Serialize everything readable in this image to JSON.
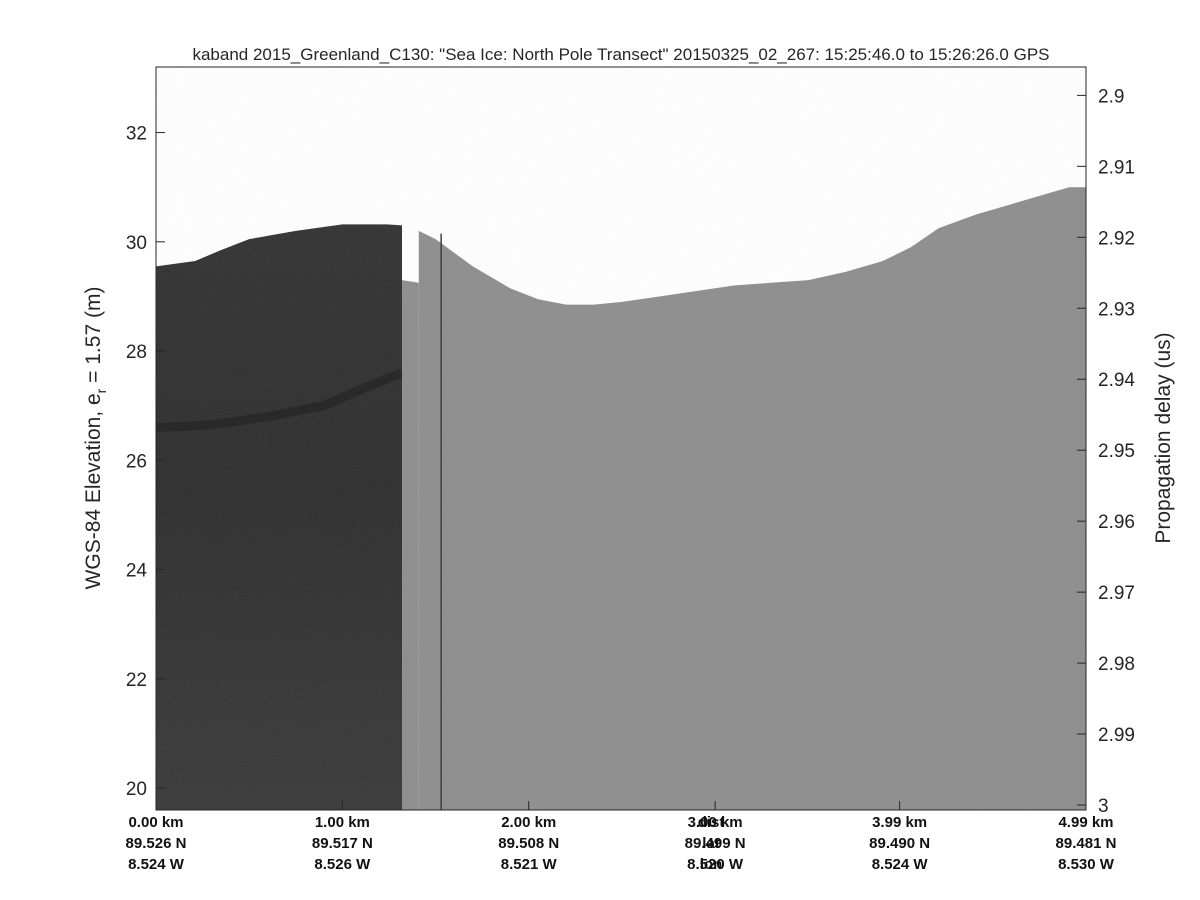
{
  "chart_data": {
    "type": "heatmap",
    "title": "kaband 2015_Greenland_C130: \"Sea Ice: North Pole Transect\"  20150325_02_267: 15:25:46.0 to 15:26:26.0 GPS",
    "ylabel_left_main": "WGS-84 Elevation, e",
    "ylabel_left_sub": "r",
    "ylabel_left_tail": " = 1.57 (m)",
    "ylabel_right": "Propagation delay (us)",
    "ylim_left": [
      19.6,
      33.2
    ],
    "yticks_left": [
      "20",
      "22",
      "24",
      "26",
      "28",
      "30",
      "32"
    ],
    "ylim_right": [
      2.896,
      3.0007
    ],
    "yticks_right": [
      "2.9",
      "2.91",
      "2.92",
      "2.93",
      "2.94",
      "2.95",
      "2.96",
      "2.97",
      "2.98",
      "2.99",
      "3"
    ],
    "xlim_km": [
      0,
      4.99
    ],
    "x_rows": [
      {
        "row_label": "dist",
        "cells": [
          {
            "text": "0.00 km",
            "km": 0.0
          },
          {
            "text": "1.00 km",
            "km": 1.0
          },
          {
            "text": "2.00 km",
            "km": 2.0
          },
          {
            "text": "3.00 km",
            "km": 3.0
          },
          {
            "text": "3.99 km",
            "km": 3.99
          },
          {
            "text": "4.99 km",
            "km": 4.99
          }
        ]
      },
      {
        "row_label": "lat",
        "cells": [
          {
            "text": "89.526 N",
            "km": 0.0
          },
          {
            "text": "89.517 N",
            "km": 1.0
          },
          {
            "text": "89.508 N",
            "km": 2.0
          },
          {
            "text": "89.499 N",
            "km": 3.0
          },
          {
            "text": "89.490 N",
            "km": 3.99
          },
          {
            "text": "89.481 N",
            "km": 4.99
          }
        ]
      },
      {
        "row_label": "lon",
        "cells": [
          {
            "text": "8.524 W",
            "km": 0.0
          },
          {
            "text": "8.526 W",
            "km": 1.0
          },
          {
            "text": "8.521 W",
            "km": 2.0
          },
          {
            "text": "8.520 W",
            "km": 3.0
          },
          {
            "text": "8.524 W",
            "km": 3.99
          },
          {
            "text": "8.530 W",
            "km": 4.99
          }
        ]
      }
    ],
    "row_label_km": 2.49,
    "surface_elevation": {
      "x_km": [
        0.0,
        0.21,
        0.35,
        0.5,
        0.75,
        1.0,
        1.24,
        1.32
      ],
      "y_m": [
        29.55,
        29.65,
        29.85,
        30.05,
        30.2,
        30.32,
        30.32,
        30.3
      ]
    },
    "surface_elevation_2": {
      "x_km": [
        1.41,
        1.5,
        1.58,
        1.7,
        1.9,
        2.05,
        2.2,
        2.35,
        2.5,
        2.7,
        2.9,
        3.1,
        3.3,
        3.5,
        3.7,
        3.9,
        4.05,
        4.2,
        4.4,
        4.6,
        4.8,
        4.9,
        4.99
      ],
      "y_m": [
        30.2,
        30.05,
        29.85,
        29.55,
        29.15,
        28.95,
        28.85,
        28.85,
        28.9,
        29.0,
        29.1,
        29.2,
        29.25,
        29.3,
        29.45,
        29.65,
        29.9,
        30.25,
        30.5,
        30.7,
        30.9,
        31.0,
        31.0
      ]
    },
    "gap_km": [
      1.32,
      1.41
    ],
    "gap_bottom_m": [
      29.3,
      29.25
    ],
    "vertical_trace_km": 1.53,
    "dark_segment_km": [
      0,
      1.32
    ],
    "bright_layer": {
      "x_km": [
        0.0,
        0.3,
        0.6,
        0.9,
        1.1,
        1.32
      ],
      "y_m": [
        26.6,
        26.65,
        26.8,
        27.0,
        27.3,
        27.6
      ]
    },
    "colors": {
      "dark_echogram": "#2b2b2b",
      "light_echogram": "#8e8e8e",
      "layer": "#1a1a1a",
      "background": "#ffffff",
      "axes": "#262626"
    }
  }
}
